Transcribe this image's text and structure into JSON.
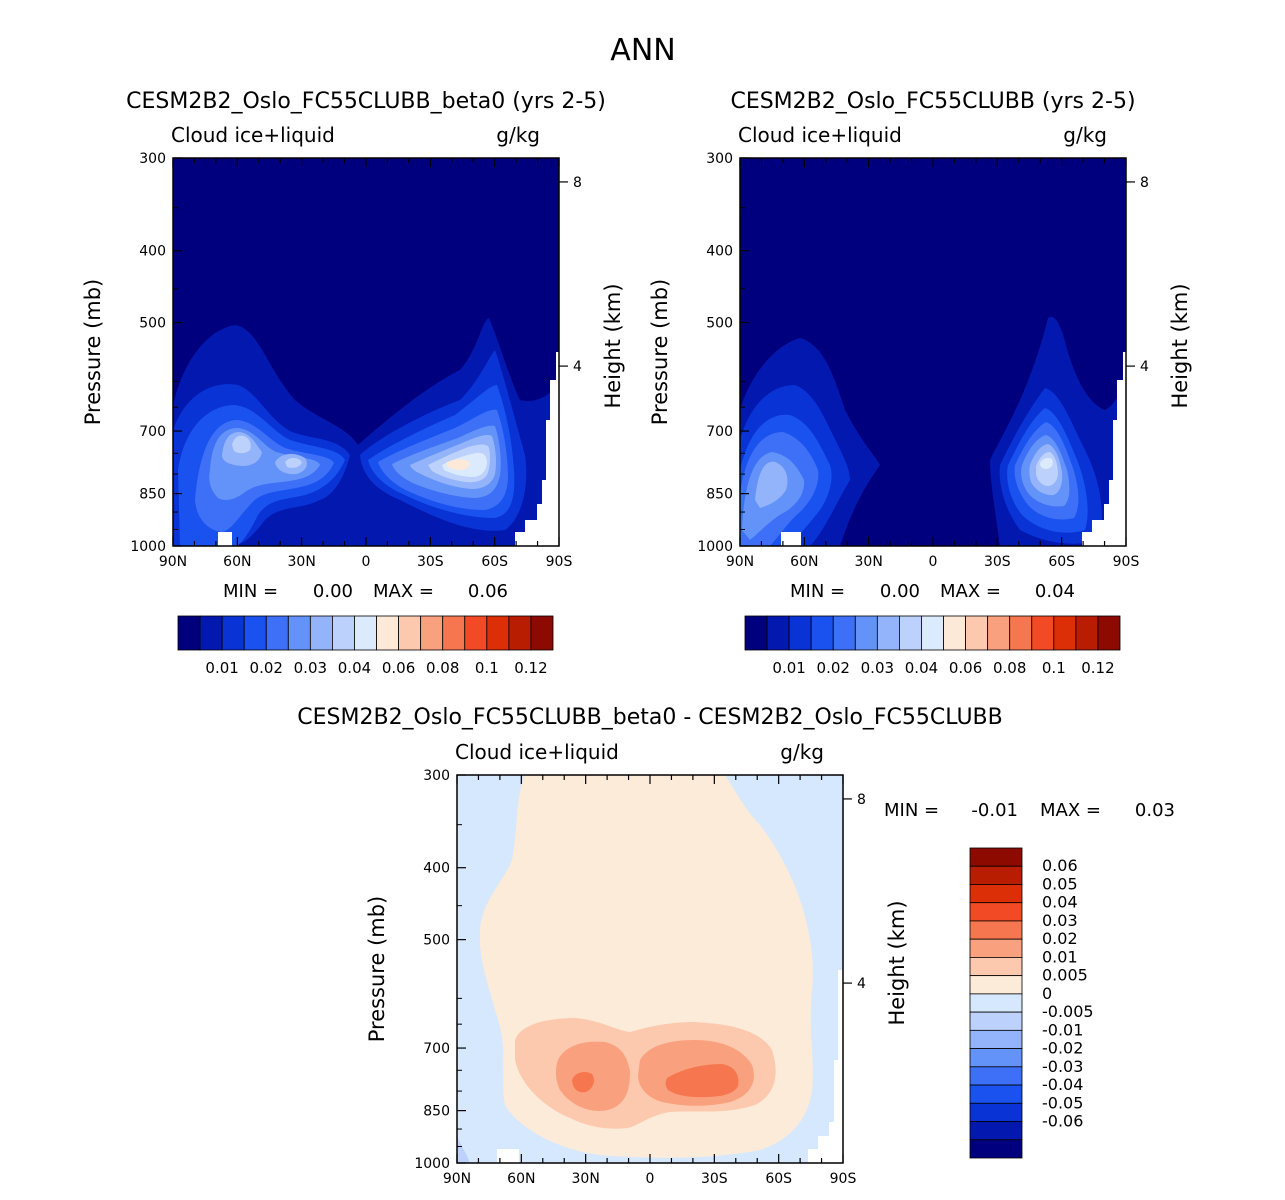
{
  "page_title": "ANN",
  "colors": {
    "seq": [
      "#00007f",
      "#0318af",
      "#0a33d6",
      "#1a52f0",
      "#3d70f6",
      "#6392f8",
      "#93b3fa",
      "#bcd2fc",
      "#dbeafd",
      "#fde9d8",
      "#fcc9ae",
      "#f9a17e",
      "#f6774f",
      "#f24a24",
      "#dc2f08",
      "#b81d02",
      "#8c0a00"
    ],
    "diff": [
      "#00007f",
      "#0318af",
      "#0a33d6",
      "#1a52f0",
      "#3d70f6",
      "#6392f8",
      "#93b3fa",
      "#bcd2fc",
      "#d6e8fd",
      "#fdebd9",
      "#fcc9ae",
      "#f9a17e",
      "#f6774f",
      "#f24a24",
      "#dc2f08",
      "#b81d02",
      "#8c0a00"
    ]
  },
  "chart_data": [
    {
      "type": "contour",
      "title": "CESM2B2_Oslo_FC55CLUBB_beta0 (yrs 2-5)",
      "subtitle_left": "Cloud ice+liquid",
      "subtitle_right": "g/kg",
      "ylabel": "Pressure (mb)",
      "ylabel_right": "Height (km)",
      "x_ticks": [
        "90N",
        "60N",
        "30N",
        "0",
        "30S",
        "60S",
        "90S"
      ],
      "y_ticks": [
        300,
        400,
        500,
        700,
        850,
        1000
      ],
      "height_ticks": [
        8,
        4
      ],
      "min_label": "MIN =",
      "min_value": "0.00",
      "max_label": "MAX =",
      "max_value": "0.06",
      "colorbar_labels": [
        "0.01",
        "0.02",
        "0.03",
        "0.04",
        "0.06",
        "0.08",
        "0.1",
        "0.12"
      ],
      "colorbar_levels": [
        0.005,
        0.01,
        0.015,
        0.02,
        0.025,
        0.03,
        0.035,
        0.04,
        0.05,
        0.06,
        0.07,
        0.08,
        0.09,
        0.1,
        0.11,
        0.12
      ]
    },
    {
      "type": "contour",
      "title": "CESM2B2_Oslo_FC55CLUBB (yrs 2-5)",
      "subtitle_left": "Cloud ice+liquid",
      "subtitle_right": "g/kg",
      "ylabel": "Pressure (mb)",
      "ylabel_right": "Height (km)",
      "x_ticks": [
        "90N",
        "60N",
        "30N",
        "0",
        "30S",
        "60S",
        "90S"
      ],
      "y_ticks": [
        300,
        400,
        500,
        700,
        850,
        1000
      ],
      "height_ticks": [
        8,
        4
      ],
      "min_label": "MIN =",
      "min_value": "0.00",
      "max_label": "MAX =",
      "max_value": "0.04",
      "colorbar_labels": [
        "0.01",
        "0.02",
        "0.03",
        "0.04",
        "0.06",
        "0.08",
        "0.1",
        "0.12"
      ],
      "colorbar_levels": [
        0.005,
        0.01,
        0.015,
        0.02,
        0.025,
        0.03,
        0.035,
        0.04,
        0.05,
        0.06,
        0.07,
        0.08,
        0.09,
        0.1,
        0.11,
        0.12
      ]
    },
    {
      "type": "contour",
      "title": "CESM2B2_Oslo_FC55CLUBB_beta0 - CESM2B2_Oslo_FC55CLUBB",
      "subtitle_left": "Cloud ice+liquid",
      "subtitle_right": "g/kg",
      "ylabel": "Pressure (mb)",
      "ylabel_right": "Height (km)",
      "x_ticks": [
        "90N",
        "60N",
        "30N",
        "0",
        "30S",
        "60S",
        "90S"
      ],
      "y_ticks": [
        300,
        400,
        500,
        700,
        850,
        1000
      ],
      "height_ticks": [
        8,
        4
      ],
      "min_label": "MIN =",
      "min_value": "-0.01",
      "max_label": "MAX =",
      "max_value": "0.03",
      "colorbar_labels": [
        "0.06",
        "0.05",
        "0.04",
        "0.03",
        "0.02",
        "0.01",
        "0.005",
        "0",
        "-0.005",
        "-0.01",
        "-0.02",
        "-0.03",
        "-0.04",
        "-0.05",
        "-0.06"
      ]
    }
  ]
}
